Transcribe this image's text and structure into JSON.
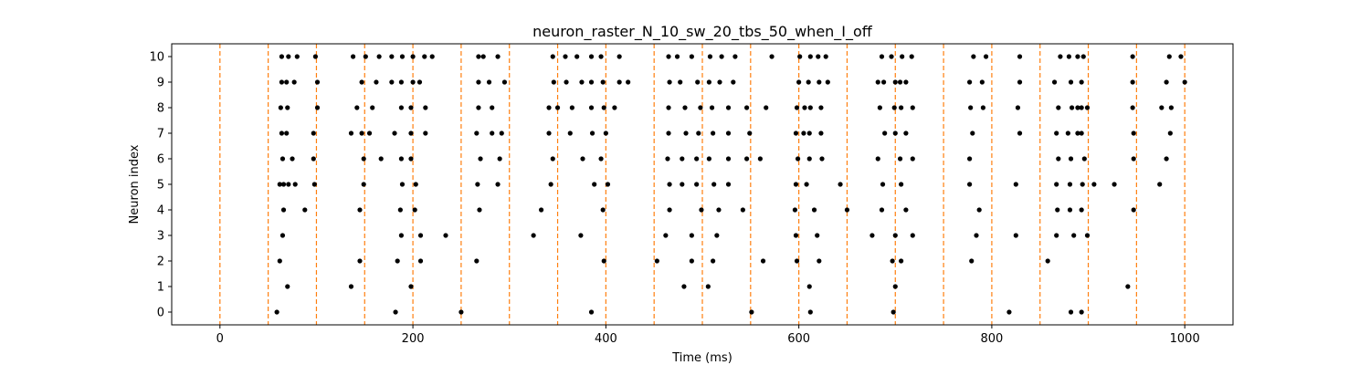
{
  "chart_data": {
    "type": "scatter",
    "title": "neuron_raster_N_10_sw_20_tbs_50_when_I_off",
    "xlabel": "Time (ms)",
    "ylabel": "Neuron index",
    "xlim": [
      -50,
      1050
    ],
    "ylim": [
      -0.5,
      10.5
    ],
    "xticks": [
      0,
      200,
      400,
      600,
      800,
      1000
    ],
    "yticks": [
      0,
      1,
      2,
      3,
      4,
      5,
      6,
      7,
      8,
      9,
      10
    ],
    "grid": false,
    "spike_color": "#000000",
    "line_color": "#ff7f0e",
    "vertical_lines": [
      0,
      50,
      100,
      150,
      200,
      250,
      300,
      350,
      400,
      450,
      500,
      550,
      600,
      650,
      700,
      750,
      800,
      850,
      900,
      950,
      1000
    ],
    "series": [
      {
        "values": [
          [
            59,
            0
          ],
          [
            182,
            0
          ],
          [
            250,
            0
          ],
          [
            385,
            0
          ],
          [
            551,
            0
          ],
          [
            612,
            0
          ],
          [
            698,
            0
          ],
          [
            818,
            0
          ],
          [
            882,
            0
          ],
          [
            893,
            0
          ]
        ]
      },
      {
        "values": [
          [
            70,
            1
          ],
          [
            136,
            1
          ],
          [
            198,
            1
          ],
          [
            481,
            1
          ],
          [
            506,
            1
          ],
          [
            611,
            1
          ],
          [
            700,
            1
          ],
          [
            941,
            1
          ]
        ]
      },
      {
        "values": [
          [
            62,
            2
          ],
          [
            145,
            2
          ],
          [
            184,
            2
          ],
          [
            208,
            2
          ],
          [
            266,
            2
          ],
          [
            398,
            2
          ],
          [
            453,
            2
          ],
          [
            489,
            2
          ],
          [
            511,
            2
          ],
          [
            563,
            2
          ],
          [
            598,
            2
          ],
          [
            621,
            2
          ],
          [
            697,
            2
          ],
          [
            706,
            2
          ],
          [
            779,
            2
          ],
          [
            858,
            2
          ]
        ]
      },
      {
        "values": [
          [
            65,
            3
          ],
          [
            188,
            3
          ],
          [
            208,
            3
          ],
          [
            234,
            3
          ],
          [
            325,
            3
          ],
          [
            374,
            3
          ],
          [
            462,
            3
          ],
          [
            489,
            3
          ],
          [
            515,
            3
          ],
          [
            597,
            3
          ],
          [
            619,
            3
          ],
          [
            676,
            3
          ],
          [
            700,
            3
          ],
          [
            718,
            3
          ],
          [
            784,
            3
          ],
          [
            825,
            3
          ],
          [
            867,
            3
          ],
          [
            885,
            3
          ],
          [
            899,
            3
          ]
        ]
      },
      {
        "values": [
          [
            66,
            4
          ],
          [
            88,
            4
          ],
          [
            145,
            4
          ],
          [
            187,
            4
          ],
          [
            202,
            4
          ],
          [
            269,
            4
          ],
          [
            333,
            4
          ],
          [
            397,
            4
          ],
          [
            466,
            4
          ],
          [
            499,
            4
          ],
          [
            517,
            4
          ],
          [
            542,
            4
          ],
          [
            596,
            4
          ],
          [
            616,
            4
          ],
          [
            650,
            4
          ],
          [
            686,
            4
          ],
          [
            711,
            4
          ],
          [
            787,
            4
          ],
          [
            868,
            4
          ],
          [
            881,
            4
          ],
          [
            893,
            4
          ],
          [
            947,
            4
          ]
        ]
      },
      {
        "values": [
          [
            62,
            5
          ],
          [
            66,
            5
          ],
          [
            71,
            5
          ],
          [
            78,
            5
          ],
          [
            98,
            5
          ],
          [
            149,
            5
          ],
          [
            189,
            5
          ],
          [
            203,
            5
          ],
          [
            267,
            5
          ],
          [
            288,
            5
          ],
          [
            343,
            5
          ],
          [
            388,
            5
          ],
          [
            402,
            5
          ],
          [
            466,
            5
          ],
          [
            479,
            5
          ],
          [
            494,
            5
          ],
          [
            512,
            5
          ],
          [
            527,
            5
          ],
          [
            597,
            5
          ],
          [
            608,
            5
          ],
          [
            643,
            5
          ],
          [
            687,
            5
          ],
          [
            706,
            5
          ],
          [
            777,
            5
          ],
          [
            825,
            5
          ],
          [
            867,
            5
          ],
          [
            881,
            5
          ],
          [
            894,
            5
          ],
          [
            906,
            5
          ],
          [
            927,
            5
          ],
          [
            974,
            5
          ]
        ]
      },
      {
        "values": [
          [
            65,
            6
          ],
          [
            75,
            6
          ],
          [
            97,
            6
          ],
          [
            149,
            6
          ],
          [
            167,
            6
          ],
          [
            188,
            6
          ],
          [
            198,
            6
          ],
          [
            270,
            6
          ],
          [
            290,
            6
          ],
          [
            345,
            6
          ],
          [
            376,
            6
          ],
          [
            395,
            6
          ],
          [
            464,
            6
          ],
          [
            479,
            6
          ],
          [
            494,
            6
          ],
          [
            507,
            6
          ],
          [
            527,
            6
          ],
          [
            546,
            6
          ],
          [
            560,
            6
          ],
          [
            599,
            6
          ],
          [
            611,
            6
          ],
          [
            624,
            6
          ],
          [
            682,
            6
          ],
          [
            705,
            6
          ],
          [
            718,
            6
          ],
          [
            777,
            6
          ],
          [
            869,
            6
          ],
          [
            882,
            6
          ],
          [
            896,
            6
          ],
          [
            947,
            6
          ],
          [
            981,
            6
          ]
        ]
      },
      {
        "values": [
          [
            64,
            7
          ],
          [
            69,
            7
          ],
          [
            97,
            7
          ],
          [
            136,
            7
          ],
          [
            147,
            7
          ],
          [
            155,
            7
          ],
          [
            181,
            7
          ],
          [
            198,
            7
          ],
          [
            213,
            7
          ],
          [
            266,
            7
          ],
          [
            282,
            7
          ],
          [
            292,
            7
          ],
          [
            341,
            7
          ],
          [
            363,
            7
          ],
          [
            386,
            7
          ],
          [
            400,
            7
          ],
          [
            465,
            7
          ],
          [
            483,
            7
          ],
          [
            496,
            7
          ],
          [
            511,
            7
          ],
          [
            527,
            7
          ],
          [
            549,
            7
          ],
          [
            597,
            7
          ],
          [
            605,
            7
          ],
          [
            611,
            7
          ],
          [
            623,
            7
          ],
          [
            689,
            7
          ],
          [
            700,
            7
          ],
          [
            711,
            7
          ],
          [
            780,
            7
          ],
          [
            829,
            7
          ],
          [
            867,
            7
          ],
          [
            879,
            7
          ],
          [
            889,
            7
          ],
          [
            893,
            7
          ],
          [
            947,
            7
          ],
          [
            985,
            7
          ]
        ]
      },
      {
        "values": [
          [
            63,
            8
          ],
          [
            70,
            8
          ],
          [
            101,
            8
          ],
          [
            142,
            8
          ],
          [
            158,
            8
          ],
          [
            188,
            8
          ],
          [
            198,
            8
          ],
          [
            213,
            8
          ],
          [
            268,
            8
          ],
          [
            282,
            8
          ],
          [
            341,
            8
          ],
          [
            350,
            8
          ],
          [
            365,
            8
          ],
          [
            385,
            8
          ],
          [
            398,
            8
          ],
          [
            409,
            8
          ],
          [
            465,
            8
          ],
          [
            482,
            8
          ],
          [
            498,
            8
          ],
          [
            510,
            8
          ],
          [
            527,
            8
          ],
          [
            546,
            8
          ],
          [
            566,
            8
          ],
          [
            598,
            8
          ],
          [
            606,
            8
          ],
          [
            612,
            8
          ],
          [
            623,
            8
          ],
          [
            684,
            8
          ],
          [
            699,
            8
          ],
          [
            706,
            8
          ],
          [
            718,
            8
          ],
          [
            778,
            8
          ],
          [
            791,
            8
          ],
          [
            827,
            8
          ],
          [
            869,
            8
          ],
          [
            883,
            8
          ],
          [
            889,
            8
          ],
          [
            893,
            8
          ],
          [
            899,
            8
          ],
          [
            946,
            8
          ],
          [
            976,
            8
          ],
          [
            986,
            8
          ]
        ]
      },
      {
        "values": [
          [
            64,
            9
          ],
          [
            69,
            9
          ],
          [
            77,
            9
          ],
          [
            101,
            9
          ],
          [
            147,
            9
          ],
          [
            162,
            9
          ],
          [
            178,
            9
          ],
          [
            188,
            9
          ],
          [
            200,
            9
          ],
          [
            207,
            9
          ],
          [
            268,
            9
          ],
          [
            279,
            9
          ],
          [
            295,
            9
          ],
          [
            346,
            9
          ],
          [
            359,
            9
          ],
          [
            375,
            9
          ],
          [
            385,
            9
          ],
          [
            397,
            9
          ],
          [
            414,
            9
          ],
          [
            423,
            9
          ],
          [
            466,
            9
          ],
          [
            477,
            9
          ],
          [
            495,
            9
          ],
          [
            507,
            9
          ],
          [
            518,
            9
          ],
          [
            532,
            9
          ],
          [
            600,
            9
          ],
          [
            610,
            9
          ],
          [
            621,
            9
          ],
          [
            630,
            9
          ],
          [
            682,
            9
          ],
          [
            688,
            9
          ],
          [
            700,
            9
          ],
          [
            705,
            9
          ],
          [
            711,
            9
          ],
          [
            777,
            9
          ],
          [
            790,
            9
          ],
          [
            829,
            9
          ],
          [
            865,
            9
          ],
          [
            882,
            9
          ],
          [
            893,
            9
          ],
          [
            946,
            9
          ],
          [
            981,
            9
          ],
          [
            1000,
            9
          ]
        ]
      },
      {
        "values": [
          [
            64,
            10
          ],
          [
            71,
            10
          ],
          [
            80,
            10
          ],
          [
            99,
            10
          ],
          [
            138,
            10
          ],
          [
            151,
            10
          ],
          [
            165,
            10
          ],
          [
            178,
            10
          ],
          [
            189,
            10
          ],
          [
            200,
            10
          ],
          [
            212,
            10
          ],
          [
            220,
            10
          ],
          [
            268,
            10
          ],
          [
            273,
            10
          ],
          [
            288,
            10
          ],
          [
            345,
            10
          ],
          [
            358,
            10
          ],
          [
            370,
            10
          ],
          [
            385,
            10
          ],
          [
            395,
            10
          ],
          [
            414,
            10
          ],
          [
            465,
            10
          ],
          [
            474,
            10
          ],
          [
            489,
            10
          ],
          [
            508,
            10
          ],
          [
            520,
            10
          ],
          [
            534,
            10
          ],
          [
            572,
            10
          ],
          [
            601,
            10
          ],
          [
            612,
            10
          ],
          [
            620,
            10
          ],
          [
            628,
            10
          ],
          [
            686,
            10
          ],
          [
            696,
            10
          ],
          [
            707,
            10
          ],
          [
            717,
            10
          ],
          [
            781,
            10
          ],
          [
            794,
            10
          ],
          [
            829,
            10
          ],
          [
            871,
            10
          ],
          [
            880,
            10
          ],
          [
            889,
            10
          ],
          [
            895,
            10
          ],
          [
            946,
            10
          ],
          [
            984,
            10
          ],
          [
            996,
            10
          ]
        ]
      }
    ]
  }
}
